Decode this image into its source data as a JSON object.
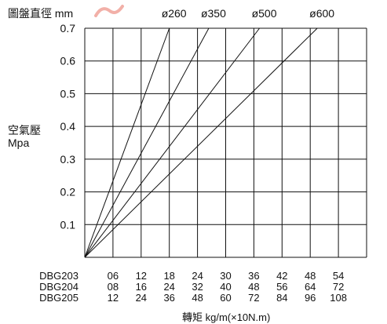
{
  "chart_data": {
    "type": "line",
    "title": "圖盤直徑 mm",
    "ylabel_line1": "空氣壓",
    "ylabel_line2": "Mpa",
    "xlabel": "轉矩 kg/m(×10N.m)",
    "ylim": [
      0,
      0.7
    ],
    "y_ticks": [
      "0.7",
      "0.6",
      "0.5",
      "0.4",
      "0.3",
      "0.2",
      "0.1"
    ],
    "x_index_range": [
      0,
      10
    ],
    "x_rows": [
      {
        "model": "DBG203",
        "ticks": [
          "06",
          "12",
          "18",
          "24",
          "30",
          "36",
          "42",
          "48",
          "54"
        ]
      },
      {
        "model": "DBG204",
        "ticks": [
          "08",
          "16",
          "24",
          "32",
          "40",
          "48",
          "56",
          "64",
          "72"
        ]
      },
      {
        "model": "DBG205",
        "ticks": [
          "12",
          "24",
          "36",
          "48",
          "60",
          "72",
          "84",
          "96",
          "108"
        ]
      }
    ],
    "grid": true,
    "series": [
      {
        "name": "ø260",
        "x_at_top": 3.0
      },
      {
        "name": "ø350",
        "x_at_top": 4.4
      },
      {
        "name": "ø500",
        "x_at_top": 6.2
      },
      {
        "name": "ø600",
        "x_at_top": 8.25
      }
    ]
  }
}
